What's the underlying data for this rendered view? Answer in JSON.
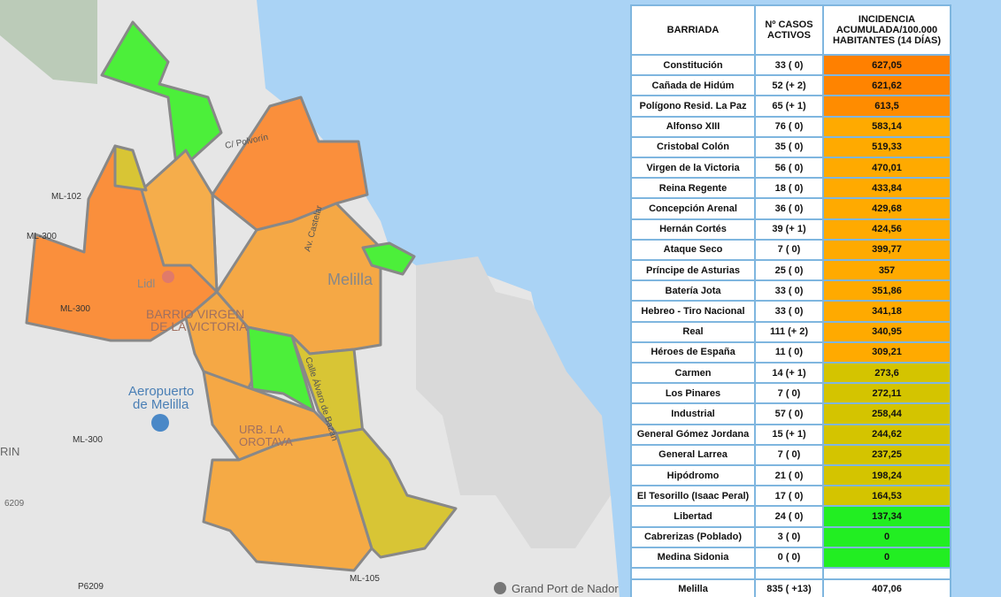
{
  "map": {
    "labels": [
      "Melilla",
      "BARRIO VIRGEN",
      "DE LA VICTORIA",
      "Lidl",
      "Aeropuerto",
      "de Melilla",
      "URB. LA",
      "OROTAVA",
      "ML-102",
      "ML-300",
      "ML-300",
      "ML-300",
      "ML-105",
      "P6209",
      "Grand Port de Nador",
      "Calle Álvaro de Bazán",
      "Av. Castelar",
      "C/ Polvorín",
      "RIN",
      "6209"
    ]
  },
  "table": {
    "header": [
      "BARRIADA",
      "Nº CASOS ACTIVOS",
      "INCIDENCIA ACUMULADA/100.000 HABITANTES (14 DÍAS)"
    ],
    "rows": [
      [
        "Constitución",
        "33 ( 0)",
        "627,05"
      ],
      [
        "Cañada de Hidúm",
        "52 (+ 2)",
        "621,62"
      ],
      [
        "Polígono Resid. La Paz",
        "65 (+ 1)",
        "613,5"
      ],
      [
        "Alfonso XIII",
        "76 ( 0)",
        "583,14"
      ],
      [
        "Cristobal Colón",
        "35 ( 0)",
        "519,33"
      ],
      [
        "Virgen de la Victoria",
        "56 ( 0)",
        "470,01"
      ],
      [
        "Reina Regente",
        "18 ( 0)",
        "433,84"
      ],
      [
        "Concepción Arenal",
        "36 ( 0)",
        "429,68"
      ],
      [
        "Hernán Cortés",
        "39 (+ 1)",
        "424,56"
      ],
      [
        "Ataque Seco",
        "7 ( 0)",
        "399,77"
      ],
      [
        "Príncipe de Asturias",
        "25 ( 0)",
        "357"
      ],
      [
        "Batería Jota",
        "33 ( 0)",
        "351,86"
      ],
      [
        "Hebreo - Tiro Nacional",
        "33 ( 0)",
        "341,18"
      ],
      [
        "Real",
        "111 (+ 2)",
        "340,95"
      ],
      [
        "Héroes de España",
        "11 ( 0)",
        "309,21"
      ],
      [
        "Carmen",
        "14 (+ 1)",
        "273,6"
      ],
      [
        "Los Pinares",
        "7 ( 0)",
        "272,11"
      ],
      [
        "Industrial",
        "57 ( 0)",
        "258,44"
      ],
      [
        "General Gómez Jordana",
        "15 (+ 1)",
        "244,62"
      ],
      [
        "General Larrea",
        "7 ( 0)",
        "237,25"
      ],
      [
        "Hipódromo",
        "21 ( 0)",
        "198,24"
      ],
      [
        "El Tesorillo (Isaac Peral)",
        "17 ( 0)",
        "164,53"
      ],
      [
        "Libertad",
        "24 ( 0)",
        "137,34"
      ],
      [
        "Cabrerizas (Poblado)",
        "3 ( 0)",
        "0"
      ],
      [
        "Medina Sidonia",
        "0 ( 0)",
        "0"
      ]
    ],
    "colors": [
      "#ff8000",
      "#ff8400",
      "#ff8c00",
      "#ffaa00",
      "#ffaa00",
      "#ffaa00",
      "#ffaa00",
      "#ffaa00",
      "#ffaa00",
      "#ffaa00",
      "#ffaa00",
      "#ffaa00",
      "#ffaa00",
      "#ffaa00",
      "#ffaa00",
      "#d4c400",
      "#d4c400",
      "#d4c400",
      "#d4c400",
      "#d4c400",
      "#d4c400",
      "#d4c400",
      "#22ee22",
      "#22ee22",
      "#22ee22"
    ],
    "total": [
      "Melilla",
      "835 ( +13)",
      "407,06"
    ]
  }
}
